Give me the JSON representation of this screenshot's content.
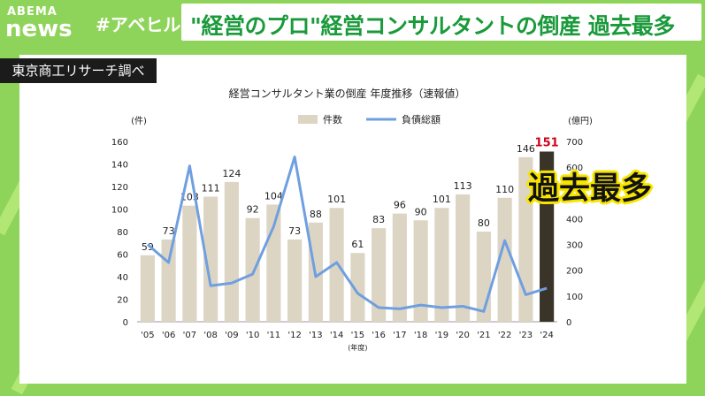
{
  "header": {
    "logo_top": "ABEMA",
    "logo_bottom": "news",
    "hashtag": "#アベヒル",
    "headline": "\"経営のプロ\"経営コンサルタントの倒産 過去最多"
  },
  "source_label": "東京商工リサーチ調べ",
  "callout": "過去最多",
  "colors": {
    "background": "#8fd45a",
    "headline_text": "#1a9a3a",
    "bar": "#ddd5c4",
    "bar_highlight": "#3a3428",
    "line": "#6f9fe0",
    "highlight_label": "#d0021b",
    "callout_outline": "#f7e500"
  },
  "chart_data": {
    "type": "bar",
    "title": "経営コンサルタント業の倒産 年度推移（速報値）",
    "xlabel": "(年度)",
    "ylabel": "(件)",
    "y2label": "(億円)",
    "ylim": [
      0,
      160
    ],
    "yticks": [
      0,
      20,
      40,
      60,
      80,
      100,
      120,
      140,
      160
    ],
    "y2lim": [
      0,
      700
    ],
    "y2ticks": [
      0,
      100,
      200,
      300,
      400,
      500,
      600,
      700
    ],
    "legend_position": "top-center",
    "categories": [
      "'05",
      "'06",
      "'07",
      "'08",
      "'09",
      "'10",
      "'11",
      "'12",
      "'13",
      "'14",
      "'15",
      "'16",
      "'17",
      "'18",
      "'19",
      "'20",
      "'21",
      "'22",
      "'23",
      "'24"
    ],
    "highlight_index": 19,
    "series": [
      {
        "name": "件数",
        "type": "bar",
        "values": [
          59,
          73,
          103,
          111,
          124,
          92,
          104,
          73,
          88,
          101,
          61,
          83,
          96,
          90,
          101,
          113,
          80,
          110,
          146,
          151
        ]
      },
      {
        "name": "負債総額",
        "type": "line",
        "axis": "right",
        "values": [
          300,
          230,
          605,
          140,
          150,
          185,
          370,
          640,
          175,
          230,
          110,
          55,
          50,
          65,
          55,
          60,
          40,
          315,
          105,
          130
        ]
      }
    ]
  }
}
